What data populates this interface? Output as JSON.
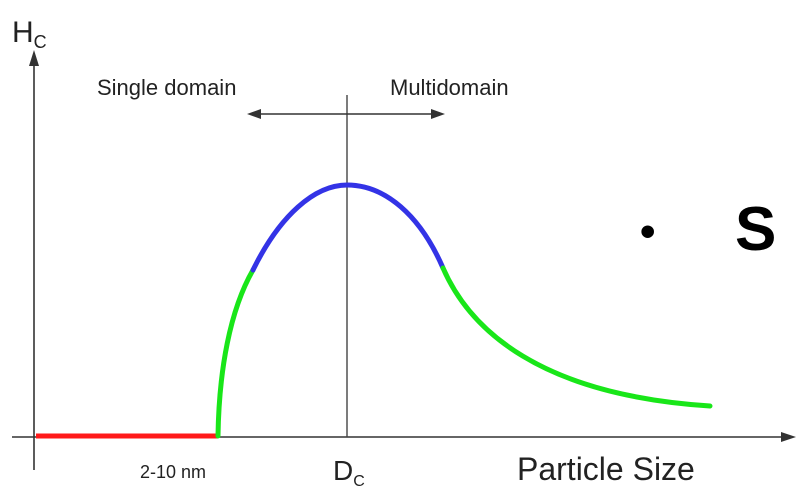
{
  "y_axis": {
    "label_main": "H",
    "label_sub": "C"
  },
  "x_axis": {
    "label": "Particle Size",
    "tick_size_label": "2-10 nm",
    "critical_main": "D",
    "critical_sub": "C"
  },
  "regions": {
    "left_label": "Single domain",
    "right_label": "Multidomain"
  },
  "bullet": {
    "symbol": "•",
    "text": "S"
  },
  "colors": {
    "superparamagnetic_segment": "#ff1a1a",
    "rising_segment": "#19e619",
    "peak_segment": "#3333e6",
    "decay_segment": "#19e619",
    "axis": "#333333"
  }
}
